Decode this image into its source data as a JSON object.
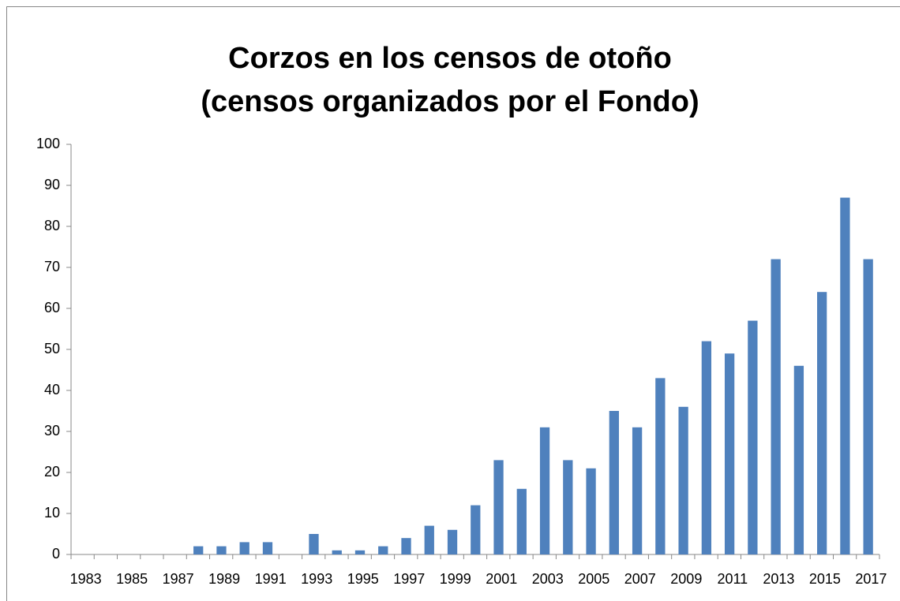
{
  "chart_data": {
    "type": "bar",
    "title": [
      "Corzos en los censos de otoño",
      "(censos organizados por el Fondo)"
    ],
    "categories": [
      "1983",
      null,
      "1985",
      null,
      "1987",
      null,
      "1989",
      null,
      "1991",
      null,
      "1993",
      null,
      "1995",
      null,
      "1997",
      null,
      "1999",
      null,
      "2001",
      null,
      "2003",
      null,
      "2005",
      null,
      "2007",
      null,
      "2009",
      null,
      "2011",
      null,
      "2013",
      null,
      "2015",
      null,
      "2017"
    ],
    "values": [
      0,
      0,
      0,
      0,
      0,
      2,
      2,
      3,
      3,
      0,
      5,
      1,
      1,
      2,
      4,
      7,
      6,
      12,
      23,
      16,
      31,
      23,
      21,
      35,
      31,
      43,
      36,
      52,
      49,
      57,
      72,
      46,
      64,
      87,
      72
    ],
    "color": "#4f81bd",
    "ylim": [
      0,
      100
    ],
    "yticks": [
      0,
      10,
      20,
      30,
      40,
      50,
      60,
      70,
      80,
      90,
      100
    ],
    "grid": false
  }
}
